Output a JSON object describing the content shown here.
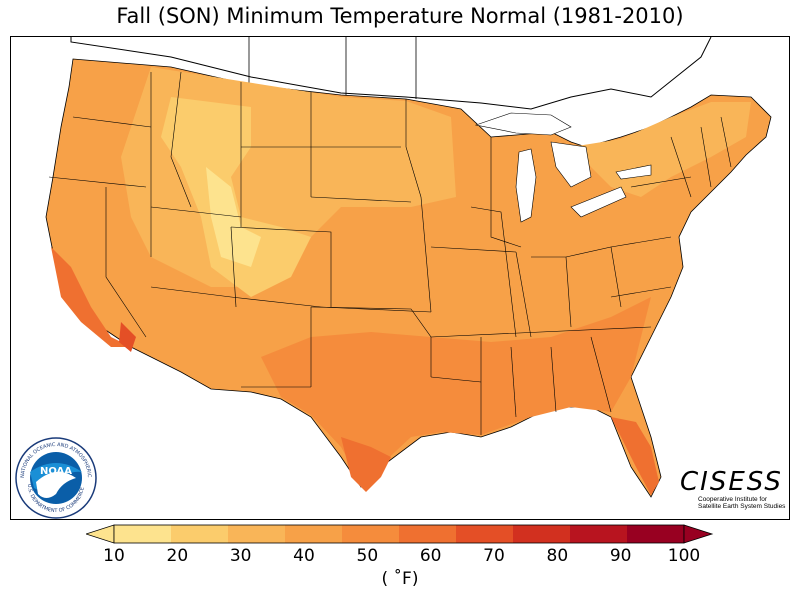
{
  "title": "Fall (SON) Minimum Temperature Normal (1981-2010)",
  "colorbar": {
    "ticks": [
      "10",
      "20",
      "30",
      "40",
      "50",
      "60",
      "70",
      "80",
      "90",
      "100"
    ],
    "unit": "( ˚F)",
    "colors": [
      "#fde38e",
      "#fbcc6c",
      "#f9b558",
      "#f7a148",
      "#f58c3c",
      "#ef7030",
      "#e44f26",
      "#d2301f",
      "#b8141f",
      "#980021"
    ]
  },
  "logos": {
    "noaa_text": "NOAA",
    "noaa_ring_top": "NATIONAL OCEANIC AND ATMOSPHERIC ADMINISTRATION",
    "noaa_ring_bottom": "U.S. DEPARTMENT OF COMMERCE",
    "cisess_name": "CISESS",
    "cisess_line1": "Cooperative Institute for",
    "cisess_line2": "Satellite Earth System Studies"
  }
}
